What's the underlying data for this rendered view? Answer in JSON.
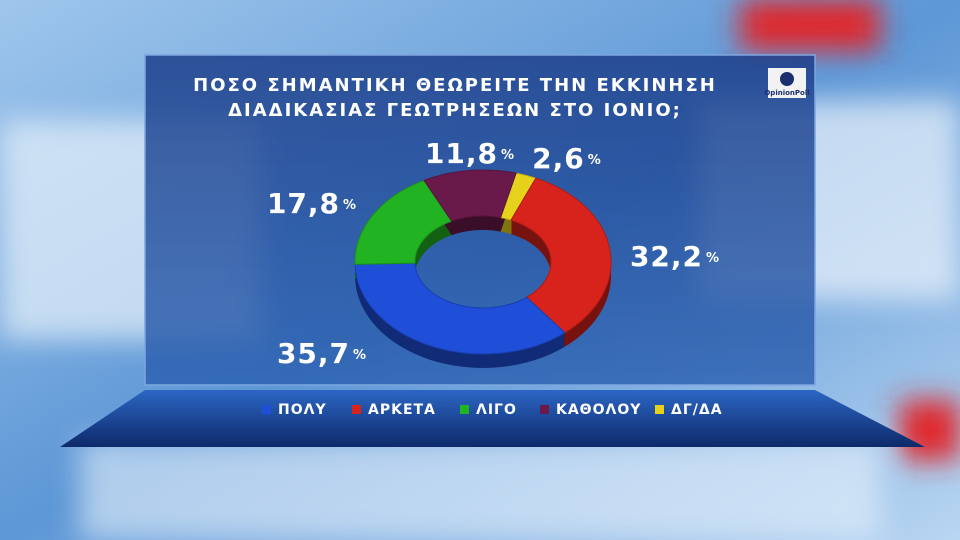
{
  "chart_data": {
    "type": "donut",
    "title": [
      "ΠΟΣΟ ΣΗΜΑΝΤΙΚΗ ΘΕΩΡΕΙΤΕ ΤΗΝ ΕΚΚΙΝΗΣΗ",
      "ΔΙΑΔΙΚΑΣΙΑΣ ΓΕΩΤΡΗΣΕΩΝ ΣΤΟ ΙΟΝΙΟ;"
    ],
    "logo": "OpinionPoll",
    "categories": [
      "ΠΟΛΥ",
      "ΑΡΚΕΤΑ",
      "ΛΙΓΟ",
      "ΚΑΘΟΛΟΥ",
      "ΔΓ/ΔΑ"
    ],
    "values": [
      35.7,
      32.2,
      17.8,
      11.8,
      2.6
    ],
    "value_labels": [
      "35,7",
      "32,2",
      "17,8",
      "11,8",
      "2,6"
    ],
    "unit": "%",
    "colors": [
      "#1f4fd8",
      "#d8231c",
      "#22b322",
      "#6a1a4a",
      "#e6d21a"
    ],
    "legend": "bottom"
  }
}
